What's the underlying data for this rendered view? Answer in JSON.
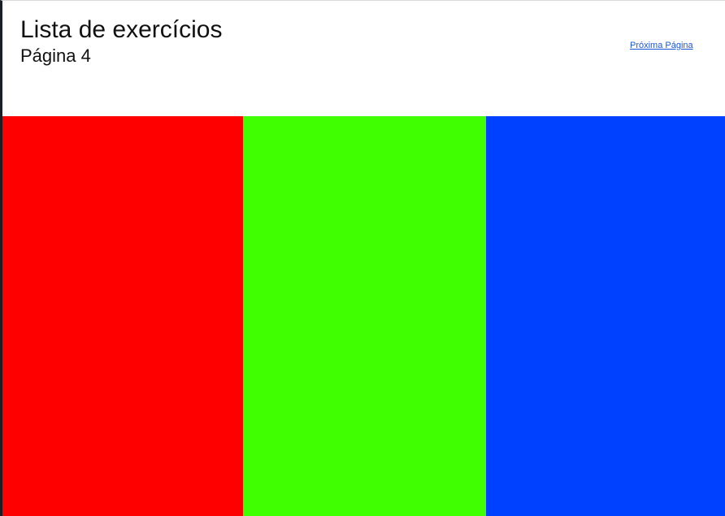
{
  "header": {
    "title": "Lista de exercícios",
    "subtitle": "Página 4",
    "next_link_label": "Próxima Página"
  },
  "panels": [
    {
      "name": "red-panel",
      "color": "#ff0000"
    },
    {
      "name": "green-panel",
      "color": "#40ff00"
    },
    {
      "name": "blue-panel",
      "color": "#0040ff"
    }
  ]
}
